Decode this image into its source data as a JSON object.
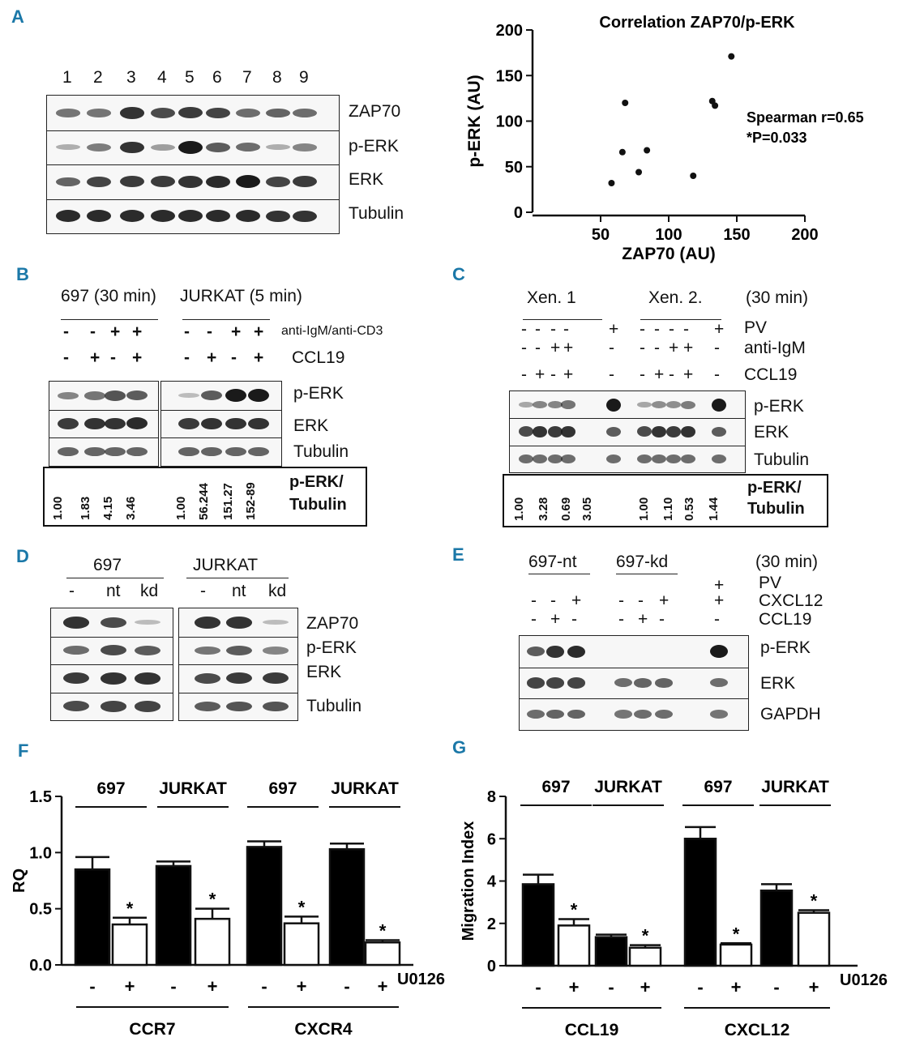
{
  "panels": {
    "A": {
      "letter": "A",
      "lanes": [
        "1",
        "2",
        "3",
        "4",
        "5",
        "6",
        "7",
        "8",
        "9"
      ],
      "rows": [
        "ZAP70",
        "p-ERK",
        "ERK",
        "Tubulin"
      ],
      "scatter": {
        "title": "Correlation ZAP70/p-ERK",
        "xlabel": "ZAP70 (AU)",
        "ylabel": "p-ERK (AU)",
        "stat_line1": "Spearman r=0.65",
        "stat_line2": "*P=0.033"
      }
    },
    "B": {
      "letter": "B",
      "header_left": "697 (30 min)",
      "header_right": "JURKAT (5 min)",
      "treat1_label": "anti-IgM/anti-CD3",
      "treat2_label": "CCL19",
      "treat1_signs": [
        "-",
        "-",
        "+",
        "+"
      ],
      "treat2_signs": [
        "-",
        "+",
        "-",
        "+"
      ],
      "rows": [
        "p-ERK",
        "ERK",
        "Tubulin"
      ],
      "ratios_left": [
        "1.00",
        "1.83",
        "4.15",
        "3.46"
      ],
      "ratios_right": [
        "1.00",
        "56.244",
        "151.27",
        "152-89"
      ],
      "ratio_label1": "p-ERK/",
      "ratio_label2": "Tubulin"
    },
    "C": {
      "letter": "C",
      "header1": "Xen. 1",
      "header2": "Xen. 2.",
      "time": "(30 min)",
      "pv_label": "PV",
      "antiigm_label": "anti-IgM",
      "ccl19_label": "CCL19",
      "pv_signs": [
        "-",
        "-",
        "-",
        "-",
        "+",
        "-",
        "-",
        "-",
        "-",
        "+"
      ],
      "antiigm_signs": [
        "-",
        "-",
        "+",
        "+",
        "-",
        "-",
        "-",
        "+",
        "+",
        "-"
      ],
      "ccl19_signs": [
        "-",
        "+",
        "-",
        "+",
        "-",
        "-",
        "+",
        "-",
        "+",
        "-"
      ],
      "rows": [
        "p-ERK",
        "ERK",
        "Tubulin"
      ],
      "ratios_left": [
        "1.00",
        "3.28",
        "0.69",
        "3.05"
      ],
      "ratios_right": [
        "1.00",
        "1.10",
        "0.53",
        "1.44"
      ],
      "ratio_label1": "p-ERK/",
      "ratio_label2": "Tubulin"
    },
    "D": {
      "letter": "D",
      "header_left": "697",
      "header_right": "JURKAT",
      "lanes": [
        "-",
        "nt",
        "kd"
      ],
      "rows": [
        "ZAP70",
        "p-ERK",
        "ERK",
        "Tubulin"
      ]
    },
    "E": {
      "letter": "E",
      "header1": "697-nt",
      "header2": "697-kd",
      "time": "(30 min)",
      "pv_label": "PV",
      "cxcl12_label": "CXCL12",
      "ccl19_label": "CCL19",
      "pv_signs": [
        "-",
        "-",
        "-",
        "-",
        "-",
        "-",
        "+"
      ],
      "cxcl12_signs": [
        "-",
        "-",
        "+",
        "-",
        "-",
        "+",
        "+"
      ],
      "ccl19_signs": [
        "-",
        "+",
        "-",
        "-",
        "+",
        "-",
        "-"
      ],
      "rows": [
        "p-ERK",
        "ERK",
        "GAPDH"
      ]
    },
    "F": {
      "letter": "F",
      "groups": [
        "697",
        "JURKAT",
        "697",
        "JURKAT"
      ],
      "treatment_label": "U0126",
      "signs": [
        "-",
        "+",
        "-",
        "+",
        "-",
        "+",
        "-",
        "+"
      ],
      "bottom_groups": [
        "CCR7",
        "CXCR4"
      ],
      "star": "*"
    },
    "G": {
      "letter": "G",
      "groups": [
        "697",
        "JURKAT",
        "697",
        "JURKAT"
      ],
      "treatment_label": "U0126",
      "signs": [
        "-",
        "+",
        "-",
        "+",
        "-",
        "+",
        "-",
        "+"
      ],
      "bottom_groups": [
        "CCL19",
        "CXCL12"
      ],
      "star": "*"
    }
  },
  "chart_data": [
    {
      "type": "scatter",
      "title": "Correlation ZAP70/p-ERK",
      "xlabel": "ZAP70 (AU)",
      "ylabel": "p-ERK (AU)",
      "xlim": [
        0,
        200
      ],
      "ylim": [
        0,
        200
      ],
      "xticks": [
        "50",
        "100",
        "150",
        "200"
      ],
      "yticks": [
        "0",
        "50",
        "100",
        "150",
        "200"
      ],
      "points": [
        [
          58,
          32
        ],
        [
          66,
          66
        ],
        [
          68,
          120
        ],
        [
          78,
          44
        ],
        [
          84,
          68
        ],
        [
          118,
          40
        ],
        [
          132,
          122
        ],
        [
          134,
          117
        ],
        [
          146,
          171
        ]
      ]
    },
    {
      "type": "bar",
      "panel": "F",
      "ylabel": "RQ",
      "ylim": [
        0,
        1.5
      ],
      "yticks": [
        "0.0",
        "0.5",
        "1.0",
        "1.5"
      ],
      "categories": [
        "697 -",
        "697 +",
        "JURKAT -",
        "JURKAT +",
        "697 -",
        "697 +",
        "JURKAT -",
        "JURKAT +"
      ],
      "values": [
        0.85,
        0.36,
        0.88,
        0.41,
        1.05,
        0.37,
        1.03,
        0.2
      ],
      "errors": [
        0.11,
        0.06,
        0.04,
        0.09,
        0.05,
        0.06,
        0.05,
        0.02
      ],
      "fill": [
        "#000000",
        "#ffffff",
        "#000000",
        "#ffffff",
        "#000000",
        "#ffffff",
        "#000000",
        "#ffffff"
      ],
      "significant": [
        false,
        true,
        false,
        true,
        false,
        true,
        false,
        true
      ]
    },
    {
      "type": "bar",
      "panel": "G",
      "ylabel": "Migration Index",
      "ylim": [
        0,
        8
      ],
      "yticks": [
        "0",
        "2",
        "4",
        "6",
        "8"
      ],
      "categories": [
        "697 -",
        "697 +",
        "JURKAT -",
        "JURKAT +",
        "697 -",
        "697 +",
        "JURKAT -",
        "JURKAT +"
      ],
      "values": [
        3.85,
        1.9,
        1.35,
        0.85,
        6.0,
        1.0,
        3.55,
        2.5
      ],
      "errors": [
        0.45,
        0.3,
        0.12,
        0.12,
        0.55,
        0.06,
        0.3,
        0.12
      ],
      "fill": [
        "#000000",
        "#ffffff",
        "#000000",
        "#ffffff",
        "#000000",
        "#ffffff",
        "#000000",
        "#ffffff"
      ],
      "significant": [
        false,
        true,
        false,
        true,
        false,
        true,
        false,
        true
      ]
    }
  ]
}
